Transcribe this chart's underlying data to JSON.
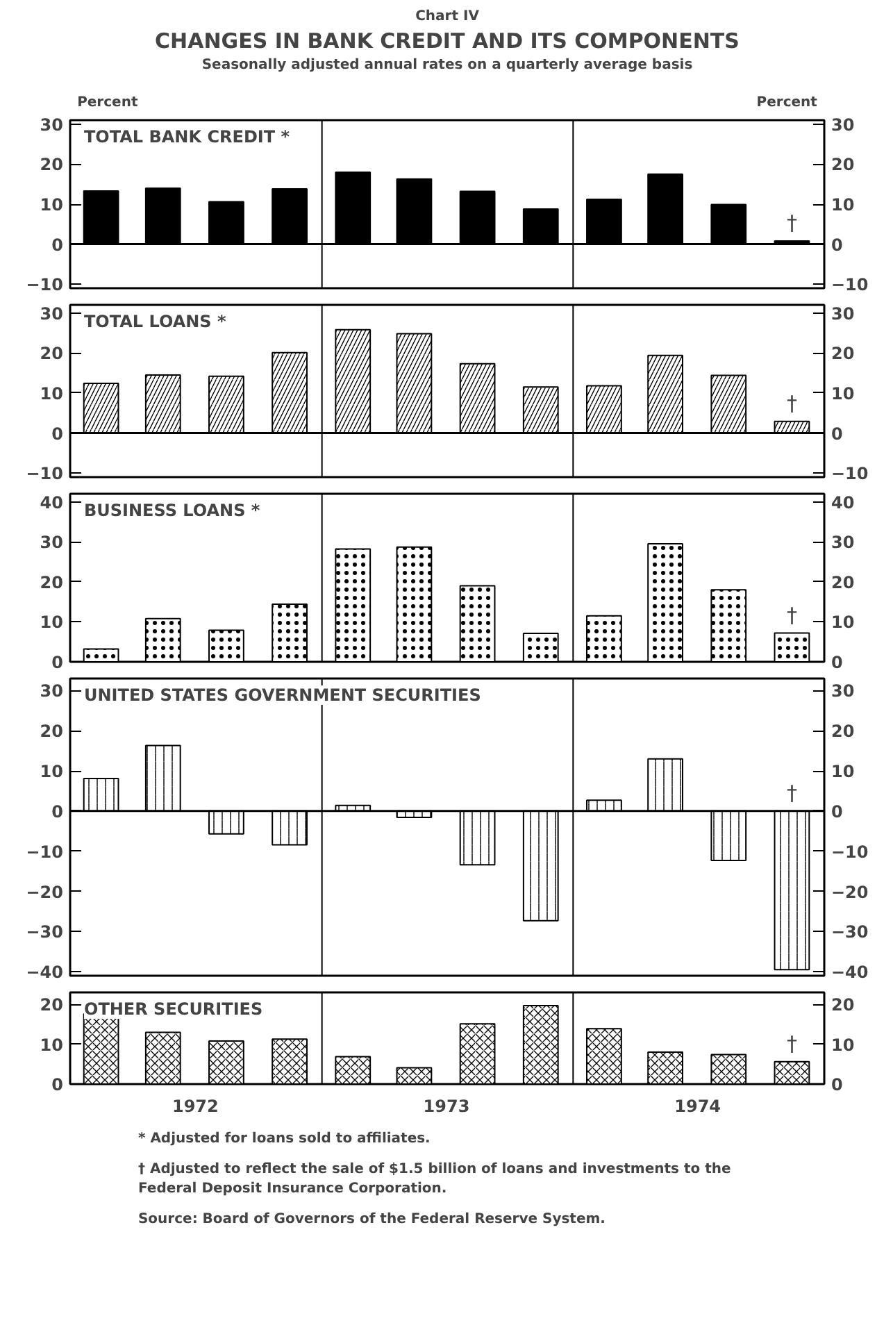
{
  "chart_data": [
    {
      "type": "other",
      "title": "CHANGES IN BANK CREDIT AND ITS COMPONENTS",
      "subtitle": "Seasonally adjusted annual rates on a quarterly average basis",
      "annotations": [
        "Chart IV"
      ]
    },
    {
      "type": "bar",
      "title": "TOTAL BANK CREDIT *",
      "ylabel": "Percent",
      "y2label": "Percent",
      "x": [
        "1972-02-15",
        "1972-05-15",
        "1972-08-15",
        "1972-11-15",
        "1973-02-15",
        "1973-05-15",
        "1973-08-15",
        "1973-11-15",
        "1974-02-15",
        "1974-05-15",
        "1974-08-15",
        "1974-11-15"
      ],
      "values": [
        13.3,
        14,
        10.6,
        13.8,
        18,
        16.3,
        13.2,
        8.8,
        11.2,
        17.5,
        9.9,
        0.8
      ],
      "color": "#000000",
      "xlim": [
        "1972-01-01",
        "1975-01-01"
      ],
      "ylim": [
        -11,
        31
      ],
      "yticks": [
        {
          "value": -10,
          "label": "−10"
        },
        0,
        10,
        20,
        30
      ],
      "y2lim": [
        -11,
        31
      ],
      "y2ticks": [
        {
          "value": -10,
          "label": "−10"
        },
        0,
        10,
        20,
        30
      ],
      "tick_labels": "y",
      "ref_lines": [
        {
          "axis": "x",
          "value": "1973-01-01",
          "label": null
        },
        {
          "axis": "x",
          "value": "1974-01-01",
          "label": null
        }
      ],
      "annotations": [
        "†"
      ]
    },
    {
      "type": "bar",
      "title": "TOTAL LOANS *",
      "x": [
        "1972-02-15",
        "1972-05-15",
        "1972-08-15",
        "1972-11-15",
        "1973-02-15",
        "1973-05-15",
        "1973-08-15",
        "1973-11-15",
        "1974-02-15",
        "1974-05-15",
        "1974-08-15",
        "1974-11-15"
      ],
      "values": [
        12.4,
        14.5,
        14.2,
        20.1,
        25.8,
        24.8,
        17.3,
        11.5,
        11.8,
        19.4,
        14.4,
        2.9
      ],
      "color": "#ffffff",
      "xlim": [
        "1972-01-01",
        "1975-01-01"
      ],
      "ylim": [
        -11,
        32
      ],
      "yticks": [
        {
          "value": -10,
          "label": "−10"
        },
        0,
        10,
        20,
        30
      ],
      "y2lim": [
        -11,
        32
      ],
      "y2ticks": [
        {
          "value": -10,
          "label": "−10"
        },
        0,
        10,
        20,
        30
      ],
      "tick_labels": "y",
      "ref_lines": [
        {
          "axis": "x",
          "value": "1973-01-01",
          "label": null
        },
        {
          "axis": "x",
          "value": "1974-01-01",
          "label": null
        }
      ],
      "annotations": [
        "†"
      ]
    },
    {
      "type": "bar",
      "title": "BUSINESS LOANS *",
      "x": [
        "1972-02-15",
        "1972-05-15",
        "1972-08-15",
        "1972-11-15",
        "1973-02-15",
        "1973-05-15",
        "1973-08-15",
        "1973-11-15",
        "1974-02-15",
        "1974-05-15",
        "1974-08-15",
        "1974-11-15"
      ],
      "values": [
        3.2,
        10.8,
        7.9,
        14.4,
        28.2,
        28.7,
        19,
        7.1,
        11.5,
        29.5,
        18,
        7.2
      ],
      "color": "#ffffff",
      "xlim": [
        "1972-01-01",
        "1975-01-01"
      ],
      "ylim": [
        0,
        42
      ],
      "yticks": [
        0,
        10,
        20,
        30,
        40
      ],
      "y2lim": [
        0,
        42
      ],
      "y2ticks": [
        0,
        10,
        20,
        30,
        40
      ],
      "tick_labels": "y",
      "ref_lines": [
        {
          "axis": "x",
          "value": "1973-01-01",
          "label": null
        },
        {
          "axis": "x",
          "value": "1974-01-01",
          "label": null
        }
      ],
      "annotations": [
        "†"
      ]
    },
    {
      "type": "bar",
      "title": "UNITED STATES GOVERNMENT SECURITIES",
      "x": [
        "1972-02-15",
        "1972-05-15",
        "1972-08-15",
        "1972-11-15",
        "1973-02-15",
        "1973-05-15",
        "1973-08-15",
        "1973-11-15",
        "1974-02-15",
        "1974-05-15",
        "1974-08-15",
        "1974-11-15"
      ],
      "values": [
        8.1,
        16.3,
        -5.7,
        -8.4,
        1.4,
        -1.6,
        -13.4,
        -27.3,
        2.7,
        13,
        -12.3,
        -39.5
      ],
      "color": "#ffffff",
      "xlim": [
        "1972-01-01",
        "1975-01-01"
      ],
      "ylim": [
        -41,
        33
      ],
      "yticks": [
        {
          "value": -40,
          "label": "−40"
        },
        {
          "value": -30,
          "label": "−30"
        },
        {
          "value": -20,
          "label": "−20"
        },
        {
          "value": -10,
          "label": "−10"
        },
        0,
        10,
        20,
        30
      ],
      "y2lim": [
        -41,
        33
      ],
      "y2ticks": [
        {
          "value": -40,
          "label": "−40"
        },
        {
          "value": -30,
          "label": "−30"
        },
        {
          "value": -20,
          "label": "−20"
        },
        {
          "value": -10,
          "label": "−10"
        },
        0,
        10,
        20,
        30
      ],
      "tick_labels": "y",
      "ref_lines": [
        {
          "axis": "x",
          "value": "1973-01-01",
          "label": null
        },
        {
          "axis": "x",
          "value": "1974-01-01",
          "label": null
        }
      ],
      "annotations": [
        "†"
      ]
    },
    {
      "type": "bar",
      "title": "OTHER SECURITIES",
      "x": [
        "1972-02-15",
        "1972-05-15",
        "1972-08-15",
        "1972-11-15",
        "1973-02-15",
        "1973-05-15",
        "1973-08-15",
        "1973-11-15",
        "1974-02-15",
        "1974-05-15",
        "1974-08-15",
        "1974-11-15"
      ],
      "values": [
        17.6,
        13,
        10.8,
        11.3,
        6.9,
        4.1,
        15.1,
        19.7,
        13.9,
        8,
        7.4,
        5.6
      ],
      "color": "#ffffff",
      "xlim": [
        "1972-01-01",
        "1975-01-01"
      ],
      "xticks": [
        {
          "value": "1972-07-01",
          "label": "1972"
        },
        {
          "value": "1973-07-01",
          "label": "1973"
        },
        {
          "value": "1974-07-01",
          "label": "1974"
        }
      ],
      "ylim": [
        0,
        23
      ],
      "yticks": [
        0,
        10,
        20
      ],
      "y2lim": [
        0,
        23
      ],
      "y2ticks": [
        0,
        10,
        20
      ],
      "ref_lines": [
        {
          "axis": "x",
          "value": "1973-01-01",
          "label": null
        },
        {
          "axis": "x",
          "value": "1974-01-01",
          "label": null
        }
      ],
      "annotations": [
        "†"
      ]
    },
    {
      "type": "other",
      "annotations": [
        "* Adjusted for loans sold to affiliates.",
        "† Adjusted to reflect the sale of $1.5 billion of loans and investments to the Federal Deposit Insurance Corporation.",
        "Source: Board of Governors of the Federal Reserve System."
      ]
    }
  ]
}
